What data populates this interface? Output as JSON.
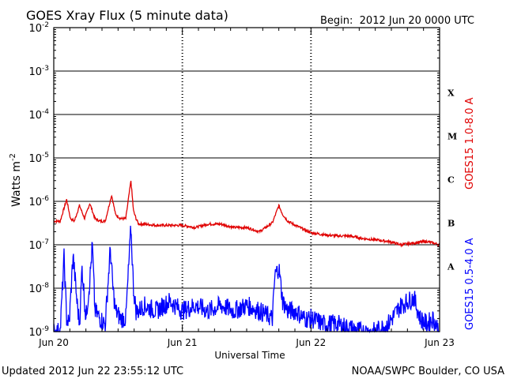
{
  "chart_data": {
    "type": "line",
    "title": "GOES Xray Flux (5 minute data)",
    "begin_label": "Begin:  2012 Jun 20 0000 UTC",
    "xlabel": "Universal Time",
    "ylabel_main": "Watts m",
    "ylabel_sup": "-2",
    "y_scale": "log",
    "ylim": [
      1e-09,
      0.01
    ],
    "y_ticks": [
      {
        "base": "10",
        "exp": "-9",
        "value": 1e-09
      },
      {
        "base": "10",
        "exp": "-8",
        "value": 1e-08
      },
      {
        "base": "10",
        "exp": "-7",
        "value": 1e-07
      },
      {
        "base": "10",
        "exp": "-6",
        "value": 1e-06
      },
      {
        "base": "10",
        "exp": "-5",
        "value": 1e-05
      },
      {
        "base": "10",
        "exp": "-4",
        "value": 0.0001
      },
      {
        "base": "10",
        "exp": "-3",
        "value": 0.001
      },
      {
        "base": "10",
        "exp": "-2",
        "value": 0.01
      }
    ],
    "x_ticks": [
      "Jun 20",
      "Jun 21",
      "Jun 22",
      "Jun 23"
    ],
    "xlim_days": [
      0,
      3
    ],
    "flare_classes": [
      {
        "label": "A",
        "low": 1e-08,
        "high": 1e-07
      },
      {
        "label": "B",
        "low": 1e-07,
        "high": 1e-06
      },
      {
        "label": "C",
        "low": 1e-06,
        "high": 1e-05
      },
      {
        "label": "M",
        "low": 1e-05,
        "high": 0.0001
      },
      {
        "label": "X",
        "low": 0.0001,
        "high": 0.001
      }
    ],
    "grid": "horizontal lines at each decade above 1e-9",
    "series": [
      {
        "name": "GOES15 1.0-8.0 A",
        "color": "#e00000",
        "x": [
          0,
          0.05,
          0.1,
          0.13,
          0.16,
          0.2,
          0.24,
          0.28,
          0.32,
          0.36,
          0.4,
          0.45,
          0.48,
          0.52,
          0.56,
          0.6,
          0.62,
          0.64,
          0.66,
          0.7,
          0.8,
          0.9,
          1.0,
          1.1,
          1.2,
          1.3,
          1.4,
          1.5,
          1.6,
          1.7,
          1.75,
          1.78,
          1.82,
          1.88,
          1.95,
          2.0,
          2.1,
          2.2,
          2.3,
          2.4,
          2.5,
          2.6,
          2.7,
          2.8,
          2.9,
          3.0
        ],
        "values": [
          3.5e-07,
          3.5e-07,
          1.1e-06,
          4e-07,
          3.5e-07,
          8e-07,
          4e-07,
          9e-07,
          4e-07,
          3.5e-07,
          3.5e-07,
          1.4e-06,
          5e-07,
          4e-07,
          4e-07,
          3e-06,
          6e-07,
          4e-07,
          3e-07,
          3e-07,
          2.8e-07,
          2.8e-07,
          2.8e-07,
          2.5e-07,
          3e-07,
          3e-07,
          2.5e-07,
          2.5e-07,
          2e-07,
          3.2e-07,
          8e-07,
          5e-07,
          3.5e-07,
          2.8e-07,
          2.2e-07,
          1.9e-07,
          1.7e-07,
          1.6e-07,
          1.6e-07,
          1.4e-07,
          1.3e-07,
          1.2e-07,
          1e-07,
          1.1e-07,
          1.2e-07,
          1e-07
        ]
      },
      {
        "name": "GOES15 0.5-4.0 A",
        "color": "#0000ff",
        "x": [
          0,
          0.05,
          0.08,
          0.1,
          0.12,
          0.15,
          0.18,
          0.2,
          0.22,
          0.25,
          0.28,
          0.3,
          0.32,
          0.36,
          0.4,
          0.44,
          0.46,
          0.48,
          0.52,
          0.56,
          0.6,
          0.62,
          0.64,
          0.66,
          0.7,
          0.8,
          0.9,
          1.0,
          1.1,
          1.2,
          1.3,
          1.4,
          1.5,
          1.6,
          1.7,
          1.72,
          1.75,
          1.78,
          1.82,
          1.88,
          1.95,
          2.0,
          2.1,
          2.2,
          2.3,
          2.4,
          2.5,
          2.6,
          2.7,
          2.8,
          2.85,
          2.9,
          2.95,
          3.0
        ],
        "values": [
          1e-09,
          1e-09,
          5e-08,
          2e-09,
          1.5e-09,
          6e-08,
          5e-09,
          1.5e-09,
          3e-08,
          2e-09,
          1.5e-08,
          1e-07,
          3e-09,
          2e-09,
          1.5e-09,
          8e-08,
          1e-08,
          3e-09,
          2e-09,
          2e-09,
          2.5e-07,
          1e-08,
          3e-09,
          3e-09,
          4e-09,
          3e-09,
          5e-09,
          3e-09,
          4e-09,
          3e-09,
          4e-09,
          3e-09,
          4e-09,
          3e-09,
          2e-09,
          2e-08,
          3e-08,
          5e-09,
          3e-09,
          3e-09,
          2e-09,
          2e-09,
          1.5e-09,
          1.5e-09,
          1.2e-09,
          1e-09,
          1e-09,
          1.5e-09,
          4e-09,
          6e-09,
          2e-09,
          1.5e-09,
          2e-09,
          1e-09
        ]
      }
    ]
  },
  "footer": {
    "updated": "Updated 2012 Jun 22 23:55:12 UTC",
    "source": "NOAA/SWPC Boulder, CO USA"
  }
}
